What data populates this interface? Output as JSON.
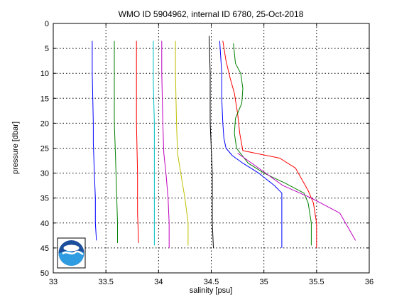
{
  "chart_data": {
    "type": "line",
    "title": "WMO ID 5904962, internal ID 6780, 25-Oct-2018",
    "xlabel": "salinity [psu]",
    "ylabel": "pressure [dbar]",
    "xlim": [
      33,
      36
    ],
    "ylim": [
      0,
      50
    ],
    "y_reversed": true,
    "grid": true,
    "x_ticks": [
      "33",
      "33.5",
      "34",
      "34.5",
      "35",
      "35.5",
      "36"
    ],
    "y_ticks": [
      "0",
      "5",
      "10",
      "15",
      "20",
      "25",
      "30",
      "35",
      "40",
      "45",
      "50"
    ],
    "logo": "NOAA",
    "series": [
      {
        "color": "#0000ff",
        "x": [
          33.37,
          33.37,
          33.38,
          33.38,
          33.39,
          33.4,
          33.4,
          33.41
        ],
        "y": [
          3.5,
          10,
          20,
          24,
          30,
          35,
          40,
          43.5
        ]
      },
      {
        "color": "#008000",
        "x": [
          33.58,
          33.58,
          33.58,
          33.59,
          33.6,
          33.61,
          33.61
        ],
        "y": [
          3.5,
          10,
          20,
          26,
          33,
          40,
          44
        ]
      },
      {
        "color": "#ff0000",
        "x": [
          33.79,
          33.79,
          33.79,
          33.8,
          33.8,
          33.81
        ],
        "y": [
          3.5,
          10,
          20,
          30,
          38,
          44
        ]
      },
      {
        "color": "#00bfbf",
        "x": [
          33.95,
          33.95,
          33.96,
          33.96,
          33.96,
          33.96
        ],
        "y": [
          3.5,
          12,
          20,
          30,
          40,
          44.5
        ]
      },
      {
        "color": "#bf00bf",
        "x": [
          34.03,
          34.03,
          34.04,
          34.05,
          34.07,
          34.09,
          34.1,
          34.1
        ],
        "y": [
          3.5,
          10,
          20,
          26,
          30,
          35,
          40,
          45
        ]
      },
      {
        "color": "#bfbf00",
        "x": [
          34.16,
          34.16,
          34.17,
          34.18,
          34.21,
          34.25,
          34.28,
          34.28
        ],
        "y": [
          3.5,
          10,
          20,
          26,
          30,
          35,
          40,
          44.5
        ]
      },
      {
        "color": "#000000",
        "x": [
          34.48,
          34.49,
          34.49,
          34.5,
          34.51,
          34.51,
          34.52
        ],
        "y": [
          2.5,
          10,
          20,
          25,
          30,
          40,
          45
        ]
      },
      {
        "color": "#0000ff",
        "x": [
          34.58,
          34.6,
          34.6,
          34.61,
          34.62,
          34.64,
          34.7,
          34.8,
          34.95,
          35.1,
          35.17,
          35.17
        ],
        "y": [
          3.5,
          10,
          15,
          20,
          23,
          25,
          26.5,
          28,
          30,
          32.5,
          34,
          45
        ]
      },
      {
        "color": "#ff0000",
        "x": [
          34.61,
          34.64,
          34.68,
          34.72,
          34.75,
          34.77,
          34.8,
          35.15,
          35.3,
          35.42,
          35.47,
          35.5,
          35.5
        ],
        "y": [
          3.5,
          7.5,
          11,
          14,
          18,
          22,
          25.5,
          27,
          29,
          33.5,
          36,
          40,
          45
        ]
      },
      {
        "color": "#008000",
        "x": [
          34.71,
          34.73,
          34.78,
          34.8,
          34.79,
          34.73,
          34.72,
          34.74,
          34.85,
          35.0,
          35.2,
          35.38,
          35.42,
          35.45,
          35.45
        ],
        "y": [
          4,
          8,
          10,
          13,
          16,
          19,
          22,
          25,
          28,
          30,
          32,
          34,
          36,
          40,
          44.5
        ]
      },
      {
        "color": "#bf00bf",
        "x": [
          34.75,
          34.95,
          35.18,
          35.45,
          35.72,
          35.87
        ],
        "y": [
          26,
          29,
          32.5,
          35,
          38,
          43.5
        ]
      }
    ]
  }
}
